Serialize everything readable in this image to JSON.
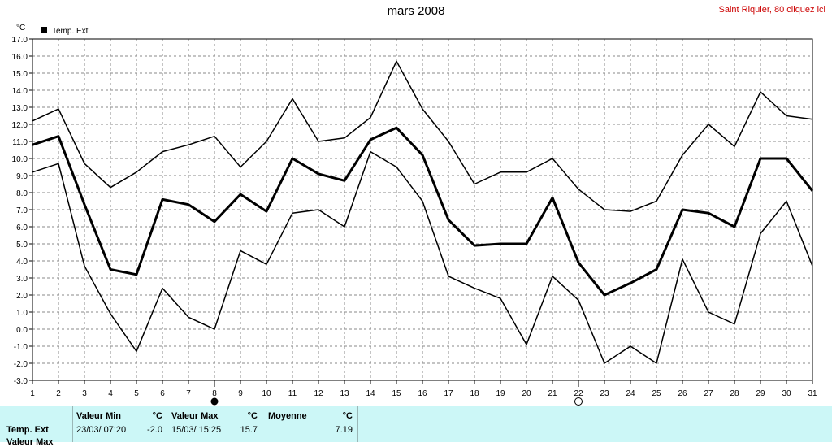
{
  "title": "mars 2008",
  "link_text": "Saint Riquier, 80 cliquez ici",
  "chart_data": {
    "type": "line",
    "unit_label": "°C",
    "legend": [
      {
        "label": "Temp. Ext",
        "color": "#000000"
      }
    ],
    "legend_position": "top-left",
    "x": [
      1,
      2,
      3,
      4,
      5,
      6,
      7,
      8,
      9,
      10,
      11,
      12,
      13,
      14,
      15,
      16,
      17,
      18,
      19,
      20,
      21,
      22,
      23,
      24,
      25,
      26,
      27,
      28,
      29,
      30,
      31
    ],
    "ylim": [
      -3.0,
      17.0
    ],
    "yticks": [
      "17.0",
      "16.0",
      "15.0",
      "14.0",
      "13.0",
      "12.0",
      "11.0",
      "10.0",
      "9.0",
      "8.0",
      "7.0",
      "6.0",
      "5.0",
      "4.0",
      "3.0",
      "2.0",
      "1.0",
      "0.0",
      "-1.0",
      "-2.0",
      "-3.0"
    ],
    "grid": true,
    "series": [
      {
        "role": "max",
        "width": 1.5,
        "values": [
          12.2,
          12.9,
          9.7,
          8.3,
          9.2,
          10.4,
          10.8,
          11.3,
          9.5,
          11.0,
          13.5,
          11.0,
          11.2,
          12.4,
          15.7,
          12.9,
          11.0,
          8.5,
          9.2,
          9.2,
          10.0,
          8.2,
          7.0,
          6.9,
          7.5,
          10.2,
          12.0,
          10.7,
          13.9,
          12.5,
          12.3
        ]
      },
      {
        "role": "mean",
        "width": 3,
        "values": [
          10.8,
          11.3,
          7.3,
          3.5,
          3.2,
          7.6,
          7.3,
          6.3,
          7.9,
          6.9,
          10.0,
          9.1,
          8.7,
          11.1,
          11.8,
          10.2,
          6.4,
          4.9,
          5.0,
          5.0,
          7.7,
          3.9,
          2.0,
          2.7,
          3.5,
          7.0,
          6.8,
          6.0,
          10.0,
          10.0,
          8.1
        ]
      },
      {
        "role": "min",
        "width": 1.5,
        "values": [
          9.2,
          9.7,
          3.7,
          0.9,
          -1.3,
          2.4,
          0.7,
          0.0,
          4.6,
          3.8,
          6.8,
          7.0,
          6.0,
          10.4,
          9.5,
          7.5,
          3.1,
          2.4,
          1.8,
          -0.9,
          3.1,
          1.7,
          -2.0,
          -1.0,
          -2.0,
          4.1,
          1.0,
          0.3,
          5.6,
          7.5,
          3.7
        ]
      }
    ],
    "markers": [
      {
        "day": 8,
        "symbol": "full-moon"
      },
      {
        "day": 22,
        "symbol": "new-moon"
      }
    ]
  },
  "stats": {
    "row1_label": "Temp. Ext",
    "row2_label": "Valeur Max",
    "min_header": "Valeur Min",
    "min_unit": "°C",
    "min_date": "23/03/  07:20",
    "min_value": "-2.0",
    "max_header": "Valeur Max",
    "max_unit": "°C",
    "max_date": "15/03/  15:25",
    "max_value": "15.7",
    "mean_header": "Moyenne",
    "mean_unit": "°C",
    "mean_value": "7.19"
  }
}
